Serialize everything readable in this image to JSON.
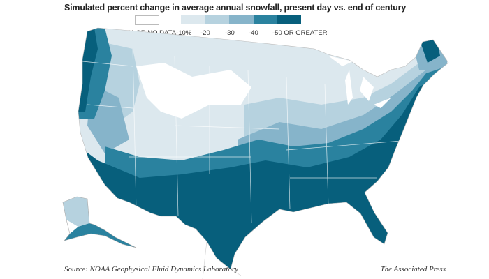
{
  "title": "Simulated percent change in average annual snowfall, present day vs. end of century",
  "legend": [
    {
      "label": "0% OR NO DATA",
      "color": "#ffffff"
    },
    {
      "label": "-10%",
      "color": "#dce8ee"
    },
    {
      "label": "-20",
      "color": "#b6d2df"
    },
    {
      "label": "-30",
      "color": "#86b4ca"
    },
    {
      "label": "-40",
      "color": "#2a829f"
    },
    {
      "label": "-50 OR GREATER",
      "color": "#075f7c"
    }
  ],
  "source": "Source: NOAA Geophysical Fluid Dynamics Laboratory",
  "credit": "The Associated Press"
}
